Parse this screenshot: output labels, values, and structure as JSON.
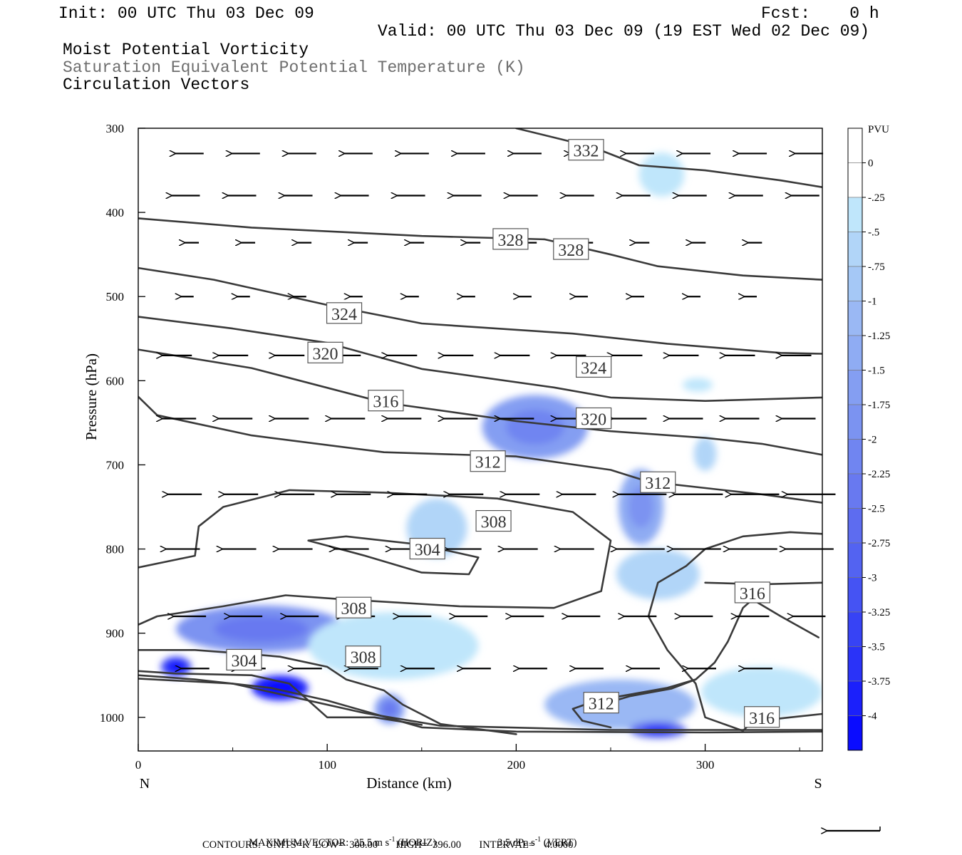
{
  "header": {
    "init": "Init: 00 UTC Thu 03 Dec 09",
    "fcst": "Fcst:    0 h",
    "valid": "Valid: 00 UTC Thu 03 Dec 09 (19 EST Wed 02 Dec 09)",
    "field1": "Moist Potential Vorticity",
    "field2": "Saturation Equivalent Potential Temperature (K)",
    "field3": "Circulation Vectors"
  },
  "footer": {
    "max_vector_label": "MAXIMUM VECTOR:",
    "max_vector_horiz": "25.5 m s",
    "horiz_tag": "(HORIZ)",
    "max_vector_vert": "3.5 dPa s",
    "vert_tag": "(VERT)",
    "exponent": "-1",
    "contours": "CONTOURS:  UNITS=K  LOW=  300.00       HIGH=  396.00       INTERVAL=    4.0000"
  },
  "colors": {
    "contour": "#3a3a3a",
    "vector": "#000000",
    "shade_light": "#bfe6fb",
    "shade_dark": "#0000ff"
  },
  "chart_data": {
    "type": "cross-section",
    "xlabel": "Distance (km)",
    "ylabel": "Pressure (hPa)",
    "xlim": [
      0,
      362
    ],
    "ylim": [
      300,
      1040
    ],
    "y_reversed": true,
    "x_ticks": [
      0,
      100,
      200,
      300
    ],
    "y_ticks": [
      300,
      400,
      500,
      600,
      700,
      800,
      900,
      1000
    ],
    "left_end_label": "N",
    "right_end_label": "S",
    "colorbar": {
      "title": "PVU",
      "levels": [
        "0",
        "-.25",
        "-.5",
        "-.75",
        "-1",
        "-1.25",
        "-1.5",
        "-1.75",
        "-2",
        "-2.25",
        "-2.5",
        "-2.75",
        "-3",
        "-3.25",
        "-3.5",
        "-3.75",
        "-4"
      ],
      "colors": [
        "#ffffff",
        "#ffffff",
        "#bfe6fb",
        "#b1d5f8",
        "#a5c8f6",
        "#9ab8f4",
        "#8facf3",
        "#849ef2",
        "#7b93f1",
        "#7085f1",
        "#6879f0",
        "#5d6cf0",
        "#5363f1",
        "#4553f3",
        "#3743f5",
        "#2a33f8",
        "#1b20fb",
        "#0a0cff"
      ]
    },
    "contour_labels": [
      {
        "text": "332",
        "x": 237,
        "p": 326
      },
      {
        "text": "328",
        "x": 197,
        "p": 432
      },
      {
        "text": "328",
        "x": 229,
        "p": 444
      },
      {
        "text": "324",
        "x": 109,
        "p": 520
      },
      {
        "text": "324",
        "x": 241,
        "p": 584
      },
      {
        "text": "320",
        "x": 99,
        "p": 567
      },
      {
        "text": "320",
        "x": 241,
        "p": 645
      },
      {
        "text": "316",
        "x": 131,
        "p": 624
      },
      {
        "text": "316",
        "x": 325,
        "p": 852
      },
      {
        "text": "316",
        "x": 330,
        "p": 1000
      },
      {
        "text": "312",
        "x": 185,
        "p": 696
      },
      {
        "text": "312",
        "x": 275,
        "p": 721
      },
      {
        "text": "312",
        "x": 245,
        "p": 983
      },
      {
        "text": "308",
        "x": 188,
        "p": 767
      },
      {
        "text": "308",
        "x": 114,
        "p": 870
      },
      {
        "text": "308",
        "x": 119,
        "p": 928
      },
      {
        "text": "304",
        "x": 153,
        "p": 800
      },
      {
        "text": "304",
        "x": 56,
        "p": 932
      }
    ],
    "pv_regions": [
      {
        "x": 277,
        "p": 355,
        "rx": 12,
        "rp": 26,
        "pv": -0.3
      },
      {
        "x": 210,
        "p": 655,
        "rx": 28,
        "rp": 38,
        "pv": -1.4
      },
      {
        "x": 266,
        "p": 750,
        "rx": 12,
        "rp": 45,
        "pv": -1.3
      },
      {
        "x": 158,
        "p": 775,
        "rx": 16,
        "rp": 35,
        "pv": -0.4
      },
      {
        "x": 300,
        "p": 687,
        "rx": 6,
        "rp": 20,
        "pv": -0.6
      },
      {
        "x": 296,
        "p": 605,
        "rx": 8,
        "rp": 8,
        "pv": -0.3
      },
      {
        "x": 275,
        "p": 830,
        "rx": 22,
        "rp": 30,
        "pv": -0.4
      },
      {
        "x": 65,
        "p": 895,
        "rx": 45,
        "rp": 28,
        "pv": -1.7
      },
      {
        "x": 135,
        "p": 915,
        "rx": 45,
        "rp": 40,
        "pv": -0.3
      },
      {
        "x": 20,
        "p": 940,
        "rx": 8,
        "rp": 12,
        "pv": -3.2
      },
      {
        "x": 75,
        "p": 965,
        "rx": 15,
        "rp": 15,
        "pv": -3.8
      },
      {
        "x": 133,
        "p": 990,
        "rx": 8,
        "rp": 18,
        "pv": -1.6
      },
      {
        "x": 255,
        "p": 985,
        "rx": 40,
        "rp": 30,
        "pv": -1.0
      },
      {
        "x": 275,
        "p": 1015,
        "rx": 15,
        "rp": 10,
        "pv": -2.5
      },
      {
        "x": 330,
        "p": 970,
        "rx": 32,
        "rp": 30,
        "pv": -0.3
      }
    ]
  }
}
